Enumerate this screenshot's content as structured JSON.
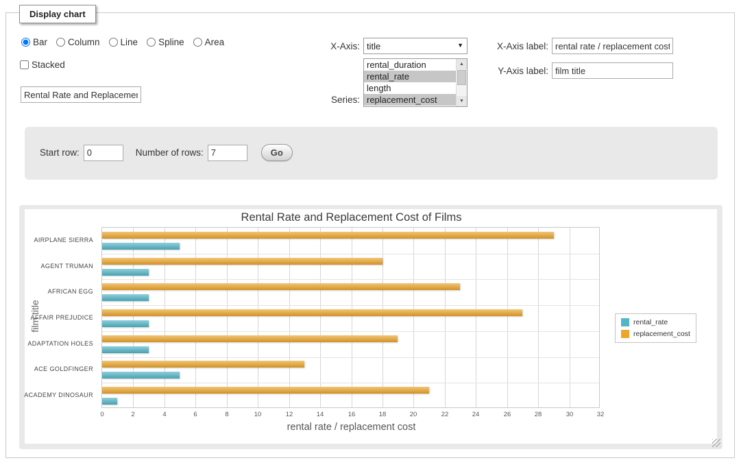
{
  "panel": {
    "legend": "Display chart"
  },
  "controls": {
    "chart_types": {
      "options": [
        "Bar",
        "Column",
        "Line",
        "Spline",
        "Area"
      ],
      "selected": "Bar"
    },
    "stacked": {
      "label": "Stacked",
      "checked": false
    },
    "title_input": {
      "value": "Rental Rate and Replacement Cost of Films"
    },
    "x_axis": {
      "label": "X-Axis:",
      "selected_option": "title"
    },
    "series": {
      "label": "Series:",
      "options": [
        "rental_duration",
        "rental_rate",
        "length",
        "replacement_cost"
      ],
      "selected": [
        "rental_rate",
        "replacement_cost"
      ]
    },
    "x_axis_label": {
      "label": "X-Axis label:",
      "value": "rental rate / replacement cost"
    },
    "y_axis_label": {
      "label": "Y-Axis label:",
      "value": "film title"
    }
  },
  "row_controls": {
    "start_row_label": "Start row:",
    "start_row_value": "0",
    "num_rows_label": "Number of rows:",
    "num_rows_value": "7",
    "go_label": "Go"
  },
  "chart_data": {
    "type": "bar",
    "orientation": "horizontal",
    "title": "Rental Rate and Replacement Cost of Films",
    "categories": [
      "AIRPLANE SIERRA",
      "AGENT TRUMAN",
      "AFRICAN EGG",
      "AFFAIR PREJUDICE",
      "ADAPTATION HOLES",
      "ACE GOLDFINGER",
      "ACADEMY DINOSAUR"
    ],
    "series": [
      {
        "name": "rental_rate",
        "color": "#52b6c8",
        "values": [
          4.99,
          2.99,
          2.99,
          2.99,
          2.99,
          4.99,
          0.99
        ]
      },
      {
        "name": "replacement_cost",
        "color": "#eda62c",
        "values": [
          28.99,
          17.99,
          22.99,
          26.99,
          18.99,
          12.99,
          20.99
        ]
      }
    ],
    "xlabel": "rental rate / replacement cost",
    "ylabel": "film title",
    "xlim": [
      0,
      32
    ],
    "xtick_step": 2,
    "grid": true,
    "legend_position": "right"
  }
}
